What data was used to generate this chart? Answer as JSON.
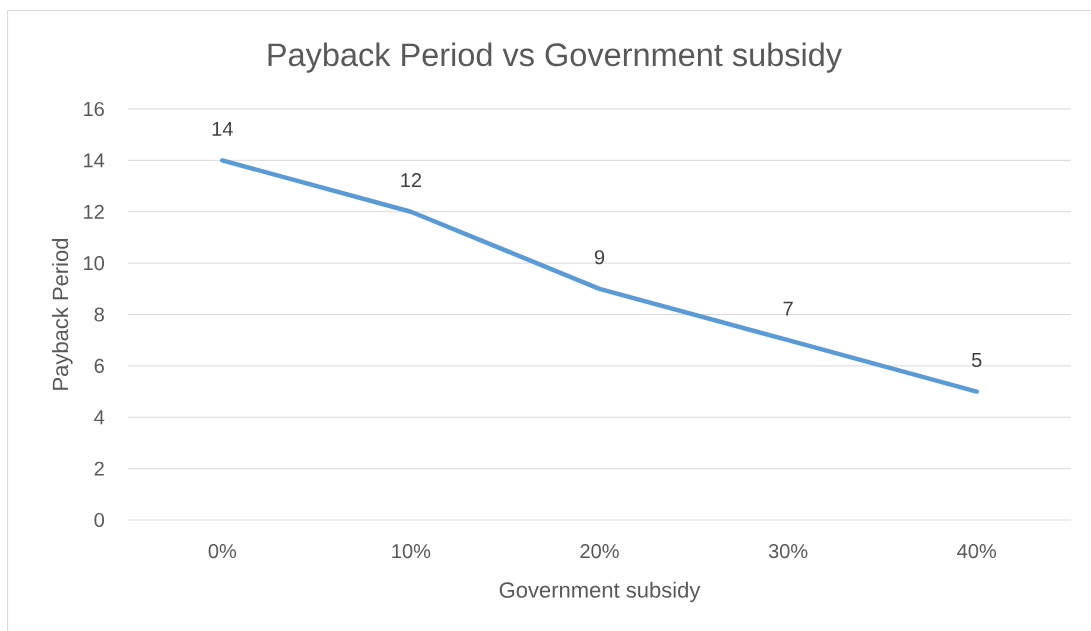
{
  "chart_data": {
    "type": "line",
    "title": "Payback Period vs Government subsidy",
    "xlabel": "Government subsidy",
    "ylabel": "Payback Period",
    "categories": [
      "0%",
      "10%",
      "20%",
      "30%",
      "40%"
    ],
    "values": [
      14,
      12,
      9,
      7,
      5
    ],
    "color": "#5b9bd5",
    "ylim": [
      0,
      16
    ],
    "yticks": [
      0,
      2,
      4,
      6,
      8,
      10,
      12,
      14,
      16
    ],
    "grid": "y",
    "data_labels": true,
    "marker": "none",
    "line_style": "solid"
  }
}
